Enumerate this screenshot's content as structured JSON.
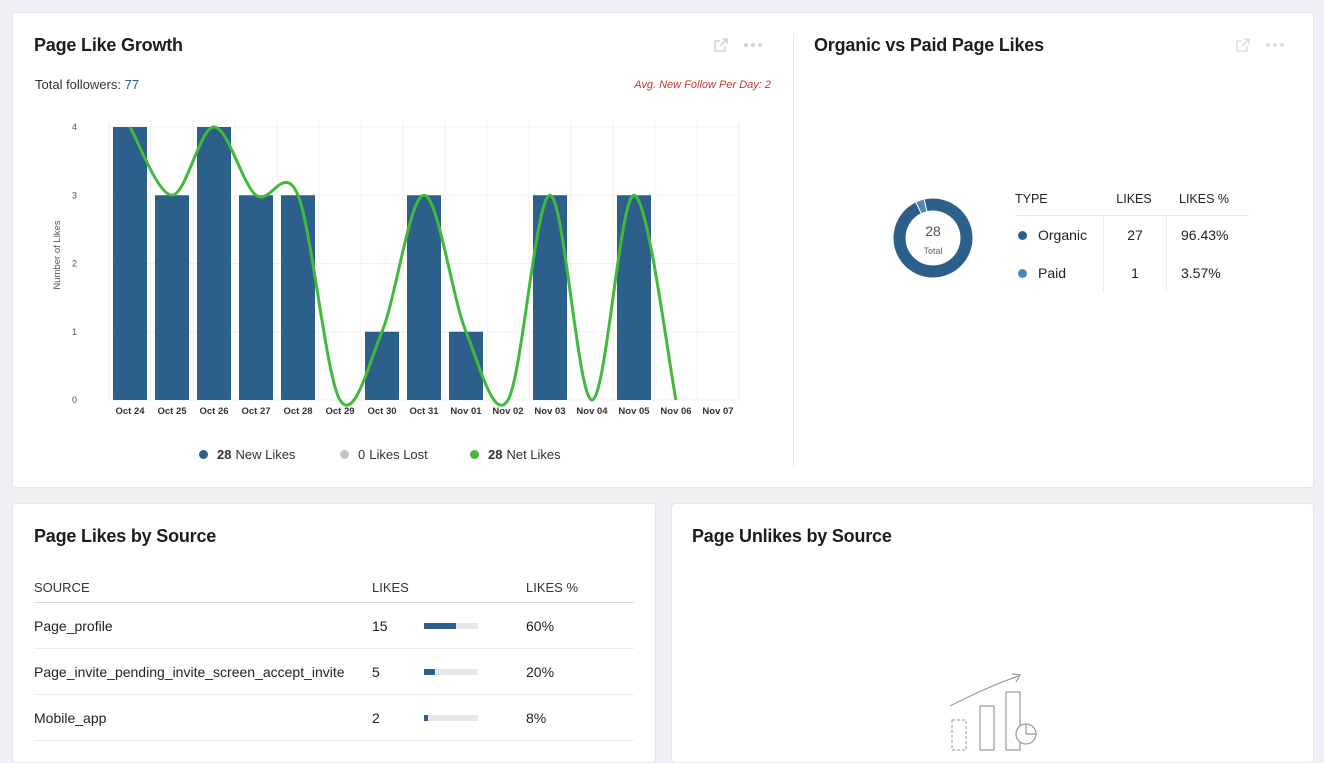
{
  "growth": {
    "title": "Page Like Growth",
    "followers_label": "Total followers:",
    "followers_value": "77",
    "avg_label": "Avg. New Follow Per Day: 2",
    "legend": [
      {
        "value": "28",
        "label": "New Likes",
        "color": "#2c5f8a"
      },
      {
        "value": "0",
        "label": "Likes Lost",
        "color": "#bdbdbd"
      },
      {
        "value": "28",
        "label": "Net Likes",
        "color": "#3fba3a"
      }
    ]
  },
  "chart_data": {
    "type": "bar",
    "ylabel": "Number of Likes",
    "xlabel": "",
    "ylim": [
      0,
      4
    ],
    "yticks": [
      "0",
      "1",
      "2",
      "3",
      "4"
    ],
    "categories": [
      "Oct 24",
      "Oct 25",
      "Oct 26",
      "Oct 27",
      "Oct 28",
      "Oct 29",
      "Oct 30",
      "Oct 31",
      "Nov 01",
      "Nov 02",
      "Nov 03",
      "Nov 04",
      "Nov 05",
      "Nov 06",
      "Nov 07"
    ],
    "series": [
      {
        "name": "New Likes",
        "type": "bar",
        "values": [
          4,
          3,
          4,
          3,
          3,
          0,
          1,
          3,
          1,
          0,
          3,
          0,
          3,
          0,
          0
        ]
      },
      {
        "name": "Net Likes",
        "type": "line",
        "values": [
          4,
          3,
          4,
          3,
          3,
          0,
          1,
          3,
          1,
          0,
          3,
          0,
          3,
          0,
          null
        ]
      }
    ],
    "grid": true
  },
  "organic": {
    "title": "Organic vs Paid Page Likes",
    "donut_total": "28",
    "donut_label": "Total",
    "columns": [
      "TYPE",
      "LIKES",
      "LIKES %"
    ],
    "rows": [
      {
        "type": "Organic",
        "likes": "27",
        "pct": "96.43%",
        "color": "#2c5f8a",
        "share": 0.9643
      },
      {
        "type": "Paid",
        "likes": "1",
        "pct": "3.57%",
        "color": "#4a8ab8",
        "share": 0.0357
      }
    ]
  },
  "sources": {
    "title": "Page Likes by Source",
    "columns": [
      "SOURCE",
      "LIKES",
      "LIKES %"
    ],
    "rows": [
      {
        "source": "Page_profile",
        "likes": "15",
        "pct": "60%",
        "share": 0.6
      },
      {
        "source": "Page_invite_pending_invite_screen_accept_invite",
        "likes": "5",
        "pct": "20%",
        "share": 0.2
      },
      {
        "source": "Mobile_app",
        "likes": "2",
        "pct": "8%",
        "share": 0.08
      }
    ]
  },
  "unlikes": {
    "title": "Page Unlikes by Source"
  }
}
